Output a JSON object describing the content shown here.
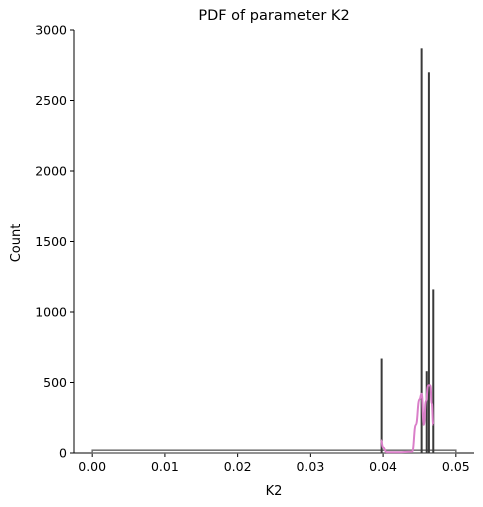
{
  "chart_data": {
    "type": "histogram",
    "title": "PDF of parameter K2",
    "xlabel": "K2",
    "ylabel": "Count",
    "xlim": [
      -0.0025,
      0.0525
    ],
    "ylim": [
      0,
      3000
    ],
    "x_ticks": [
      0.0,
      0.01,
      0.02,
      0.03,
      0.04,
      0.05
    ],
    "x_tick_labels": [
      "0.00",
      "0.01",
      "0.02",
      "0.03",
      "0.04",
      "0.05"
    ],
    "y_ticks": [
      0,
      500,
      1000,
      1500,
      2000,
      2500,
      3000
    ],
    "y_tick_labels": [
      "0",
      "500",
      "1000",
      "1500",
      "2000",
      "2500",
      "3000"
    ],
    "grid": false,
    "spines": [
      "left",
      "bottom"
    ],
    "baseline_count": 20,
    "bars": [
      {
        "x": 0.0398,
        "count": 670
      },
      {
        "x": 0.0453,
        "count": 2870
      },
      {
        "x": 0.046,
        "count": 580
      },
      {
        "x": 0.0463,
        "count": 2700
      },
      {
        "x": 0.0469,
        "count": 1160
      }
    ],
    "bar_color": "#3a3a3a",
    "baseline_color": "#6e6e6e",
    "kde": {
      "color": "#da7fc9",
      "x": [
        0.0397,
        0.04,
        0.0405,
        0.042,
        0.044,
        0.0445,
        0.045,
        0.0453,
        0.0456,
        0.0459,
        0.0462,
        0.0465,
        0.0467,
        0.0469
      ],
      "y": [
        90,
        40,
        5,
        5,
        10,
        200,
        380,
        420,
        200,
        370,
        480,
        480,
        350,
        200
      ]
    }
  }
}
